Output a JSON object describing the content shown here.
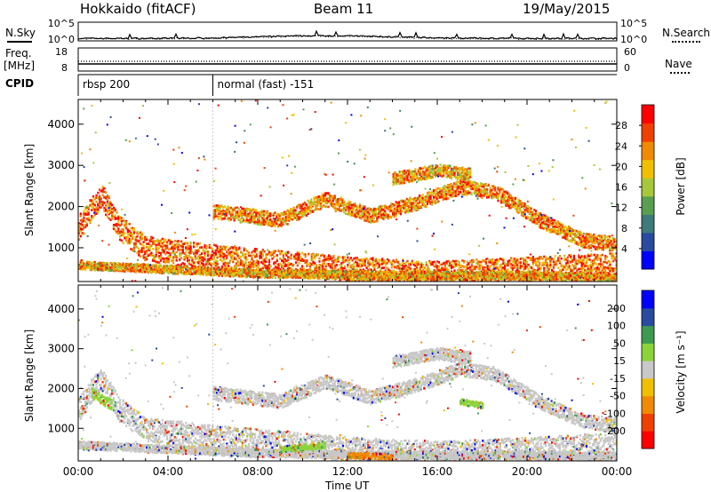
{
  "header": {
    "station": "Hokkaido (fitACF)",
    "beam": "Beam 11",
    "date": "19/May/2015"
  },
  "top_panels": {
    "nsky_label": "N.Sky",
    "nsearch_label": "N.Search",
    "n_ticks_left": [
      "10^5",
      "10^0"
    ],
    "n_ticks_right": [
      "10^5",
      "10^0"
    ],
    "freq_label_1": "Freq.",
    "freq_label_2": "[MHz]",
    "freq_ticks": [
      "18",
      "8"
    ],
    "nave_label": "Nave",
    "nave_ticks": [
      "60",
      "0"
    ],
    "cpid_label": "CPID",
    "cpid_segments": [
      {
        "label": "rbsp 200",
        "start_hour": 0
      },
      {
        "label": "normal (fast) -151",
        "start_hour": 6
      }
    ]
  },
  "chart_data": [
    {
      "type": "heatmap",
      "quantity": "Power",
      "ylabel": "Slant Range [km]",
      "xlabel": "",
      "x_range_hours": [
        0,
        24
      ],
      "ylim": [
        180,
        4600
      ],
      "y_ticks": [
        1000,
        2000,
        3000,
        4000
      ],
      "colorbar_label": "Power [dB]",
      "colorbar_ticks": [
        4,
        8,
        12,
        16,
        20,
        24,
        28
      ],
      "colorbar_range": [
        0,
        32
      ],
      "colors": [
        "#0000ff",
        "#2a4aa0",
        "#3e7a78",
        "#58a050",
        "#a6c83a",
        "#f0c000",
        "#f08a00",
        "#f04000",
        "#ff0000"
      ],
      "bands": [
        {
          "points": [
            [
              0,
              1500
            ],
            [
              1,
              2300
            ],
            [
              1.8,
              1500
            ],
            [
              3,
              1000
            ],
            [
              6,
              800
            ],
            [
              9,
              650
            ],
            [
              12,
              500
            ],
            [
              16,
              400
            ],
            [
              20,
              500
            ],
            [
              24,
              600
            ]
          ],
          "width": 600,
          "level": 26
        },
        {
          "points": [
            [
              0,
              600
            ],
            [
              4,
              500
            ],
            [
              8,
              400
            ],
            [
              14,
              350
            ],
            [
              20,
              350
            ],
            [
              24,
              300
            ]
          ],
          "width": 200,
          "level": 22
        },
        {
          "points": [
            [
              6,
              1900
            ],
            [
              9,
              1700
            ],
            [
              11,
              2200
            ],
            [
              13,
              1800
            ],
            [
              15,
              2100
            ],
            [
              17,
              2500
            ],
            [
              18.5,
              2400
            ],
            [
              20.5,
              1700
            ],
            [
              22.5,
              1200
            ],
            [
              24,
              1100
            ]
          ],
          "width": 350,
          "level": 24
        },
        {
          "points": [
            [
              14,
              2700
            ],
            [
              16,
              2900
            ],
            [
              17.5,
              2800
            ]
          ],
          "width": 300,
          "level": 22
        }
      ]
    },
    {
      "type": "heatmap",
      "quantity": "Velocity",
      "ylabel": "Slant Range [km]",
      "xlabel": "Time UT",
      "x_range_hours": [
        0,
        24
      ],
      "x_ticks": [
        "00:00",
        "04:00",
        "08:00",
        "12:00",
        "16:00",
        "20:00",
        "00:00"
      ],
      "ylim": [
        180,
        4600
      ],
      "y_ticks": [
        1000,
        2000,
        3000,
        4000
      ],
      "colorbar_label": "Velocity [m s⁻¹]",
      "colorbar_ticks": [
        "200",
        "100",
        "50",
        "15",
        "-15",
        "-50",
        "-100",
        "-200"
      ],
      "colors": [
        "#ff0000",
        "#f04000",
        "#f08a00",
        "#f0c000",
        "#c8c8c8",
        "#8ad43a",
        "#3e9a50",
        "#2a4aa0",
        "#0000ff"
      ],
      "bands": [
        {
          "points": [
            [
              0,
              1500
            ],
            [
              1,
              2300
            ],
            [
              1.8,
              1500
            ],
            [
              3,
              1000
            ],
            [
              6,
              800
            ],
            [
              9,
              650
            ],
            [
              12,
              500
            ],
            [
              16,
              400
            ],
            [
              20,
              500
            ],
            [
              24,
              600
            ]
          ],
          "width": 600,
          "level": 4
        },
        {
          "points": [
            [
              0,
              600
            ],
            [
              4,
              500
            ],
            [
              8,
              400
            ],
            [
              14,
              350
            ],
            [
              20,
              350
            ],
            [
              24,
              300
            ]
          ],
          "width": 200,
          "level": 4
        },
        {
          "points": [
            [
              6,
              1900
            ],
            [
              9,
              1700
            ],
            [
              11,
              2200
            ],
            [
              13,
              1800
            ],
            [
              15,
              2100
            ],
            [
              17,
              2500
            ],
            [
              18.5,
              2400
            ],
            [
              20.5,
              1700
            ],
            [
              22.5,
              1200
            ],
            [
              24,
              1100
            ]
          ],
          "width": 350,
          "level": 4
        },
        {
          "points": [
            [
              14,
              2700
            ],
            [
              16,
              2900
            ],
            [
              17.5,
              2800
            ]
          ],
          "width": 300,
          "level": 4
        }
      ],
      "accents": [
        {
          "points": [
            [
              0.6,
              1900
            ],
            [
              1.5,
              1600
            ]
          ],
          "width": 250,
          "level": 5
        },
        {
          "points": [
            [
              17,
              1700
            ],
            [
              18,
              1600
            ]
          ],
          "width": 150,
          "level": 5
        },
        {
          "points": [
            [
              12,
              350
            ],
            [
              14,
              300
            ]
          ],
          "width": 150,
          "level": 2
        },
        {
          "points": [
            [
              9,
              500
            ],
            [
              11,
              600
            ]
          ],
          "width": 150,
          "level": 5
        }
      ]
    }
  ]
}
